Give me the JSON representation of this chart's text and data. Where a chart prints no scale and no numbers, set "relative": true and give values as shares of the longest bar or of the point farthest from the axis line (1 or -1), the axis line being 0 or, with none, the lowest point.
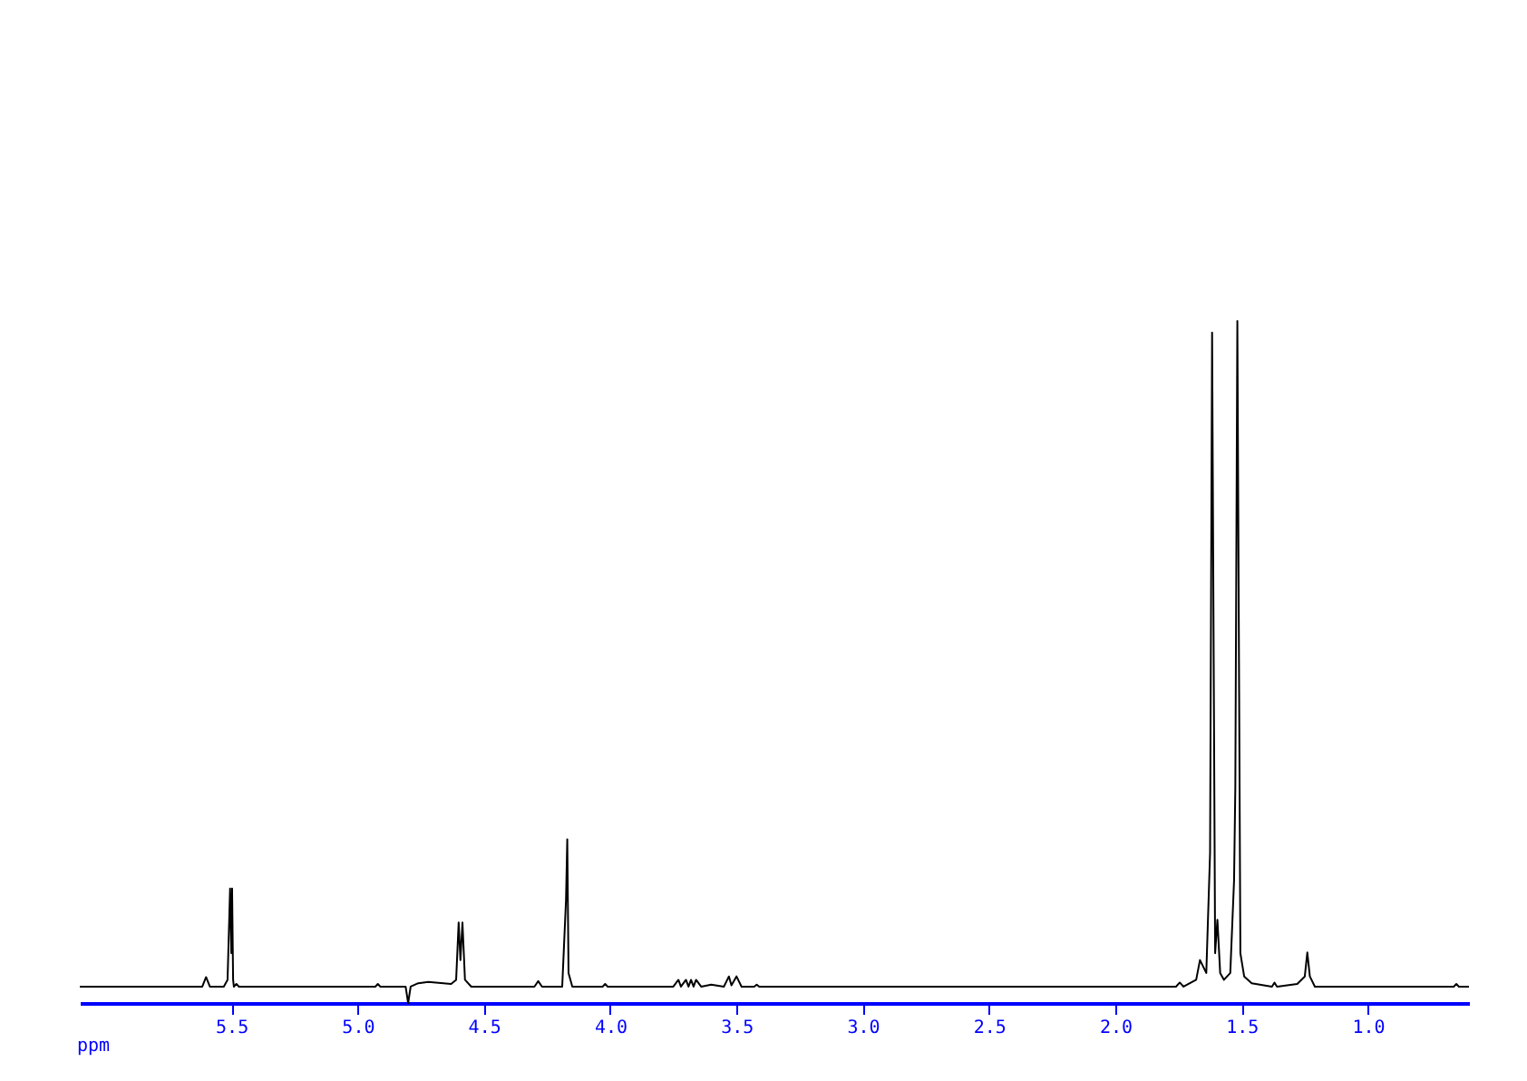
{
  "chart_data": {
    "type": "line",
    "relative": true,
    "xlabel": "ppm",
    "xlim": [
      6.1,
      0.6
    ],
    "xticks": [
      {
        "value": 5.5,
        "label": "5.5"
      },
      {
        "value": 5,
        "label": "5.0"
      },
      {
        "value": 4.5,
        "label": "4.5"
      },
      {
        "value": 4,
        "label": "4.0"
      },
      {
        "value": 3.5,
        "label": "3.5"
      },
      {
        "value": 3,
        "label": "3.0"
      },
      {
        "value": 2.5,
        "label": "2.5"
      },
      {
        "value": 2,
        "label": "2.0"
      },
      {
        "value": 1.5,
        "label": "1.5"
      },
      {
        "value": 1,
        "label": "1.0"
      }
    ],
    "grid": false,
    "legend": false,
    "marker": "none",
    "line_style": "solid",
    "series": [
      {
        "color": "#000000",
        "x": [
          6.1,
          5.65,
          5.615,
          5.6,
          5.585,
          5.53,
          5.515,
          5.505,
          5.5,
          5.497,
          5.493,
          5.49,
          5.48,
          5.47,
          5.45,
          5.3,
          4.93,
          4.92,
          4.91,
          4.81,
          4.8,
          4.79,
          4.76,
          4.72,
          4.66,
          4.63,
          4.61,
          4.6,
          4.593,
          4.585,
          4.575,
          4.55,
          4.3,
          4.285,
          4.27,
          4.19,
          4.175,
          4.17,
          4.165,
          4.15,
          4.03,
          4.02,
          4.01,
          3.75,
          3.73,
          3.72,
          3.7,
          3.69,
          3.68,
          3.67,
          3.66,
          3.64,
          3.6,
          3.55,
          3.53,
          3.52,
          3.5,
          3.48,
          3.43,
          3.42,
          3.41,
          1.76,
          1.745,
          1.73,
          1.68,
          1.665,
          1.64,
          1.625,
          1.617,
          1.605,
          1.596,
          1.585,
          1.57,
          1.545,
          1.53,
          1.525,
          1.517,
          1.505,
          1.49,
          1.46,
          1.38,
          1.37,
          1.36,
          1.28,
          1.25,
          1.24,
          1.23,
          1.21,
          0.66,
          0.65,
          0.64,
          0.6
        ],
        "values": [
          0.024,
          0.024,
          0.024,
          0.038,
          0.024,
          0.024,
          0.034,
          0.168,
          0.073,
          0.168,
          0.034,
          0.024,
          0.028,
          0.024,
          0.024,
          0.024,
          0.024,
          0.028,
          0.024,
          0.024,
          0,
          0.024,
          0.029,
          0.031,
          0.029,
          0.028,
          0.034,
          0.118,
          0.063,
          0.118,
          0.034,
          0.024,
          0.024,
          0.032,
          0.024,
          0.024,
          0.151,
          0.24,
          0.044,
          0.024,
          0.024,
          0.028,
          0.024,
          0.024,
          0.034,
          0.024,
          0.034,
          0.024,
          0.034,
          0.024,
          0.034,
          0.024,
          0.027,
          0.024,
          0.039,
          0.026,
          0.039,
          0.024,
          0.024,
          0.027,
          0.024,
          0.024,
          0.03,
          0.024,
          0.034,
          0.063,
          0.044,
          0.22,
          0.983,
          0.073,
          0.122,
          0.044,
          0.034,
          0.044,
          0.18,
          0.317,
          1,
          0.073,
          0.039,
          0.029,
          0.024,
          0.03,
          0.024,
          0.028,
          0.039,
          0.074,
          0.039,
          0.024,
          0.024,
          0.028,
          0.024,
          0.024
        ]
      }
    ]
  }
}
